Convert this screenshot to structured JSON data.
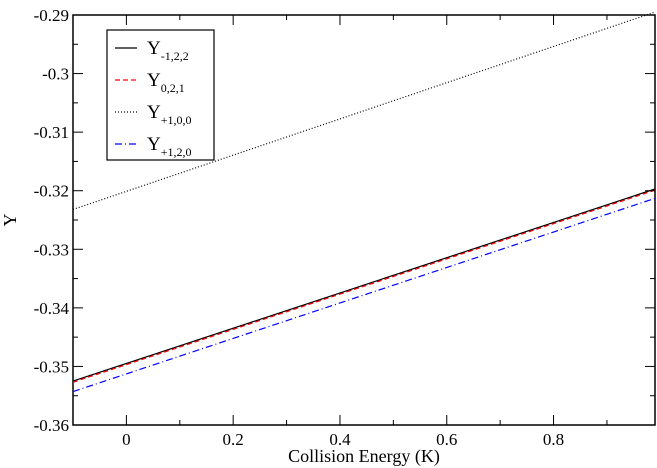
{
  "chart_data": {
    "type": "line",
    "title": "",
    "xlabel": "Collision Energy (K)",
    "ylabel": "Y",
    "xlim": [
      -0.1,
      0.99
    ],
    "ylim": [
      -0.36,
      -0.29
    ],
    "x_ticks": [
      0,
      0.2,
      0.4,
      0.6,
      0.8
    ],
    "x_tick_labels": [
      "0",
      "0.2",
      "0.4",
      "0.6",
      "0.8"
    ],
    "y_ticks": [
      -0.36,
      -0.35,
      -0.34,
      -0.33,
      -0.32,
      -0.31,
      -0.3,
      -0.29
    ],
    "y_tick_labels": [
      "-0.36",
      "-0.35",
      "-0.34",
      "-0.33",
      "-0.32",
      "-0.31",
      "-0.3",
      "-0.29"
    ],
    "grid": false,
    "legend_position": "top-left",
    "series": [
      {
        "name": "Y",
        "subscript": "-1,2,2",
        "color": "#000000",
        "dash": "solid",
        "x": [
          -0.1,
          0.99
        ],
        "y": [
          -0.3525,
          -0.3197
        ]
      },
      {
        "name": "Y",
        "subscript": "0,2,1",
        "color": "#ff0000",
        "dash": "dashed",
        "x": [
          -0.1,
          0.99
        ],
        "y": [
          -0.3527,
          -0.3199
        ]
      },
      {
        "name": "Y",
        "subscript": "+1,0,0",
        "color": "#000000",
        "dash": "dotted",
        "x": [
          -0.1,
          0.99
        ],
        "y": [
          -0.3232,
          -0.2895
        ]
      },
      {
        "name": "Y",
        "subscript": "+1,2,0",
        "color": "#0000ff",
        "dash": "dashdot",
        "x": [
          -0.1,
          0.99
        ],
        "y": [
          -0.3543,
          -0.3213
        ]
      }
    ]
  }
}
